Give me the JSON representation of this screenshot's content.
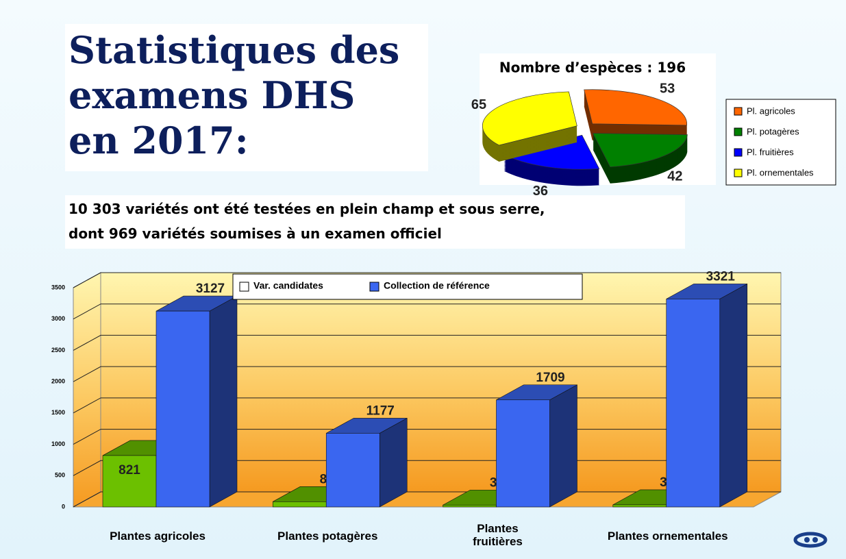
{
  "slide": {
    "title": [
      "Statistiques des",
      "examens DHS",
      "en 2017:"
    ],
    "text": [
      "10 303 variétés ont été testées en plein champ et sous serre,",
      "dont 969 variétés soumises à un examen officiel"
    ]
  },
  "chart_data": [
    {
      "type": "pie",
      "title": "Nombre d’espèces : 196",
      "categories": [
        "Pl. agricoles",
        "Pl. potagères",
        "Pl. fruitières",
        "Pl. ornementales"
      ],
      "values": [
        53,
        42,
        36,
        65
      ],
      "colors": [
        "#ff6600",
        "#008000",
        "#0000ff",
        "#ffff00"
      ],
      "legend": "right"
    },
    {
      "type": "bar3d",
      "categories": [
        "Plantes agricoles",
        "Plantes potagères",
        "Plantes fruitières",
        "Plantes ornementales"
      ],
      "series": [
        {
          "name": "Var. candidates",
          "color": "#6cc000",
          "legend_color": "#ffffff",
          "values": [
            821,
            84,
            30,
            34
          ]
        },
        {
          "name": "Collection de référence",
          "color": "#3a66f0",
          "legend_color": "#3a66f0",
          "values": [
            3127,
            1177,
            1709,
            3321
          ]
        }
      ],
      "ylim": [
        0,
        3500
      ],
      "yticks": [
        0,
        500,
        1000,
        1500,
        2000,
        2500,
        3000,
        3500
      ],
      "grid": true,
      "legend": "top"
    }
  ]
}
